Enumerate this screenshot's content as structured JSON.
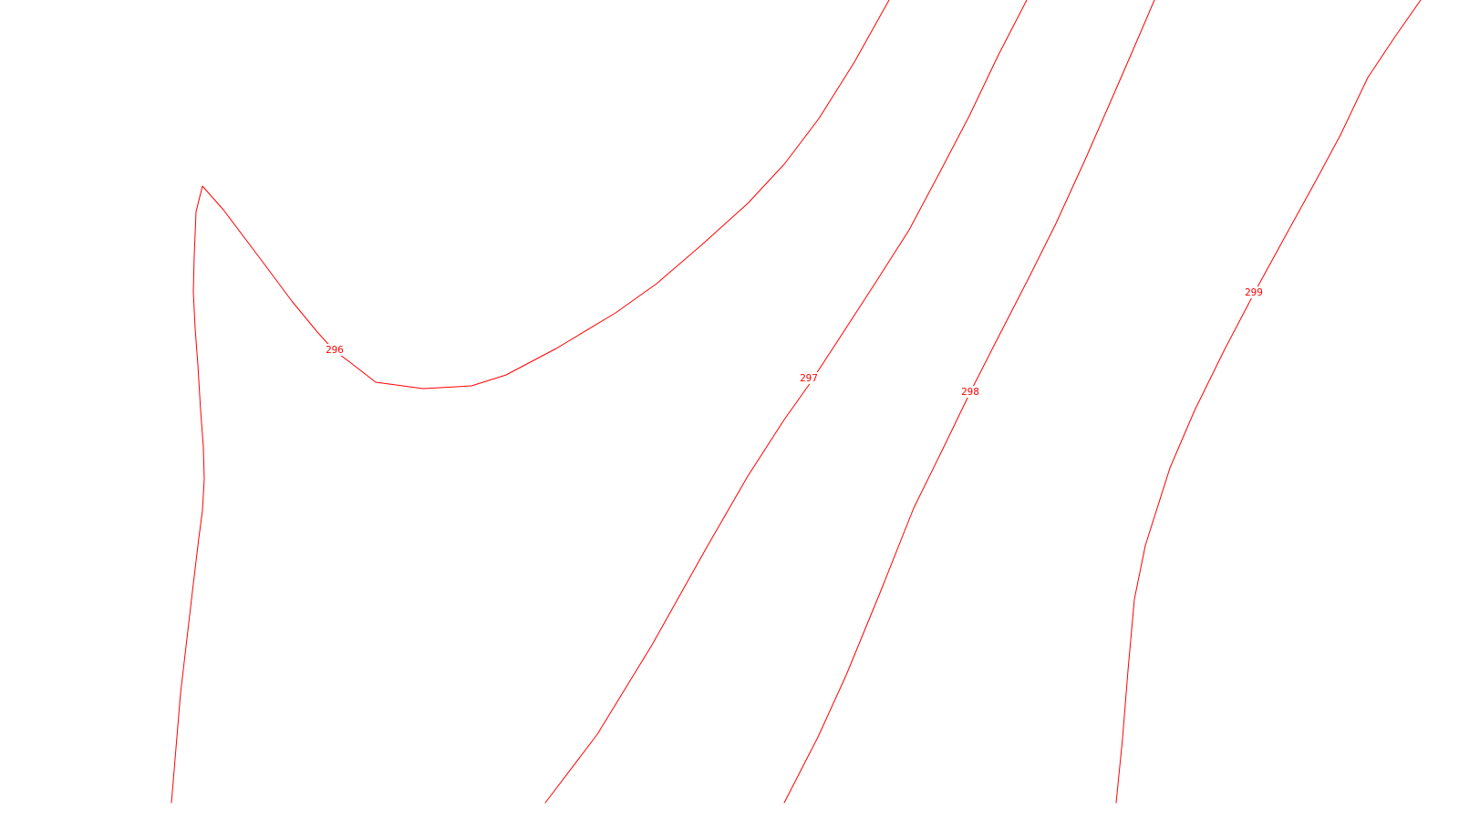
{
  "map": {
    "line_color": "#ff0000",
    "background_color": "#ffffff",
    "contours": [
      {
        "id": "contour-296",
        "label": "296"
      },
      {
        "id": "contour-297",
        "label": "297"
      },
      {
        "id": "contour-298",
        "label": "298"
      },
      {
        "id": "contour-299",
        "label": "299"
      }
    ]
  }
}
